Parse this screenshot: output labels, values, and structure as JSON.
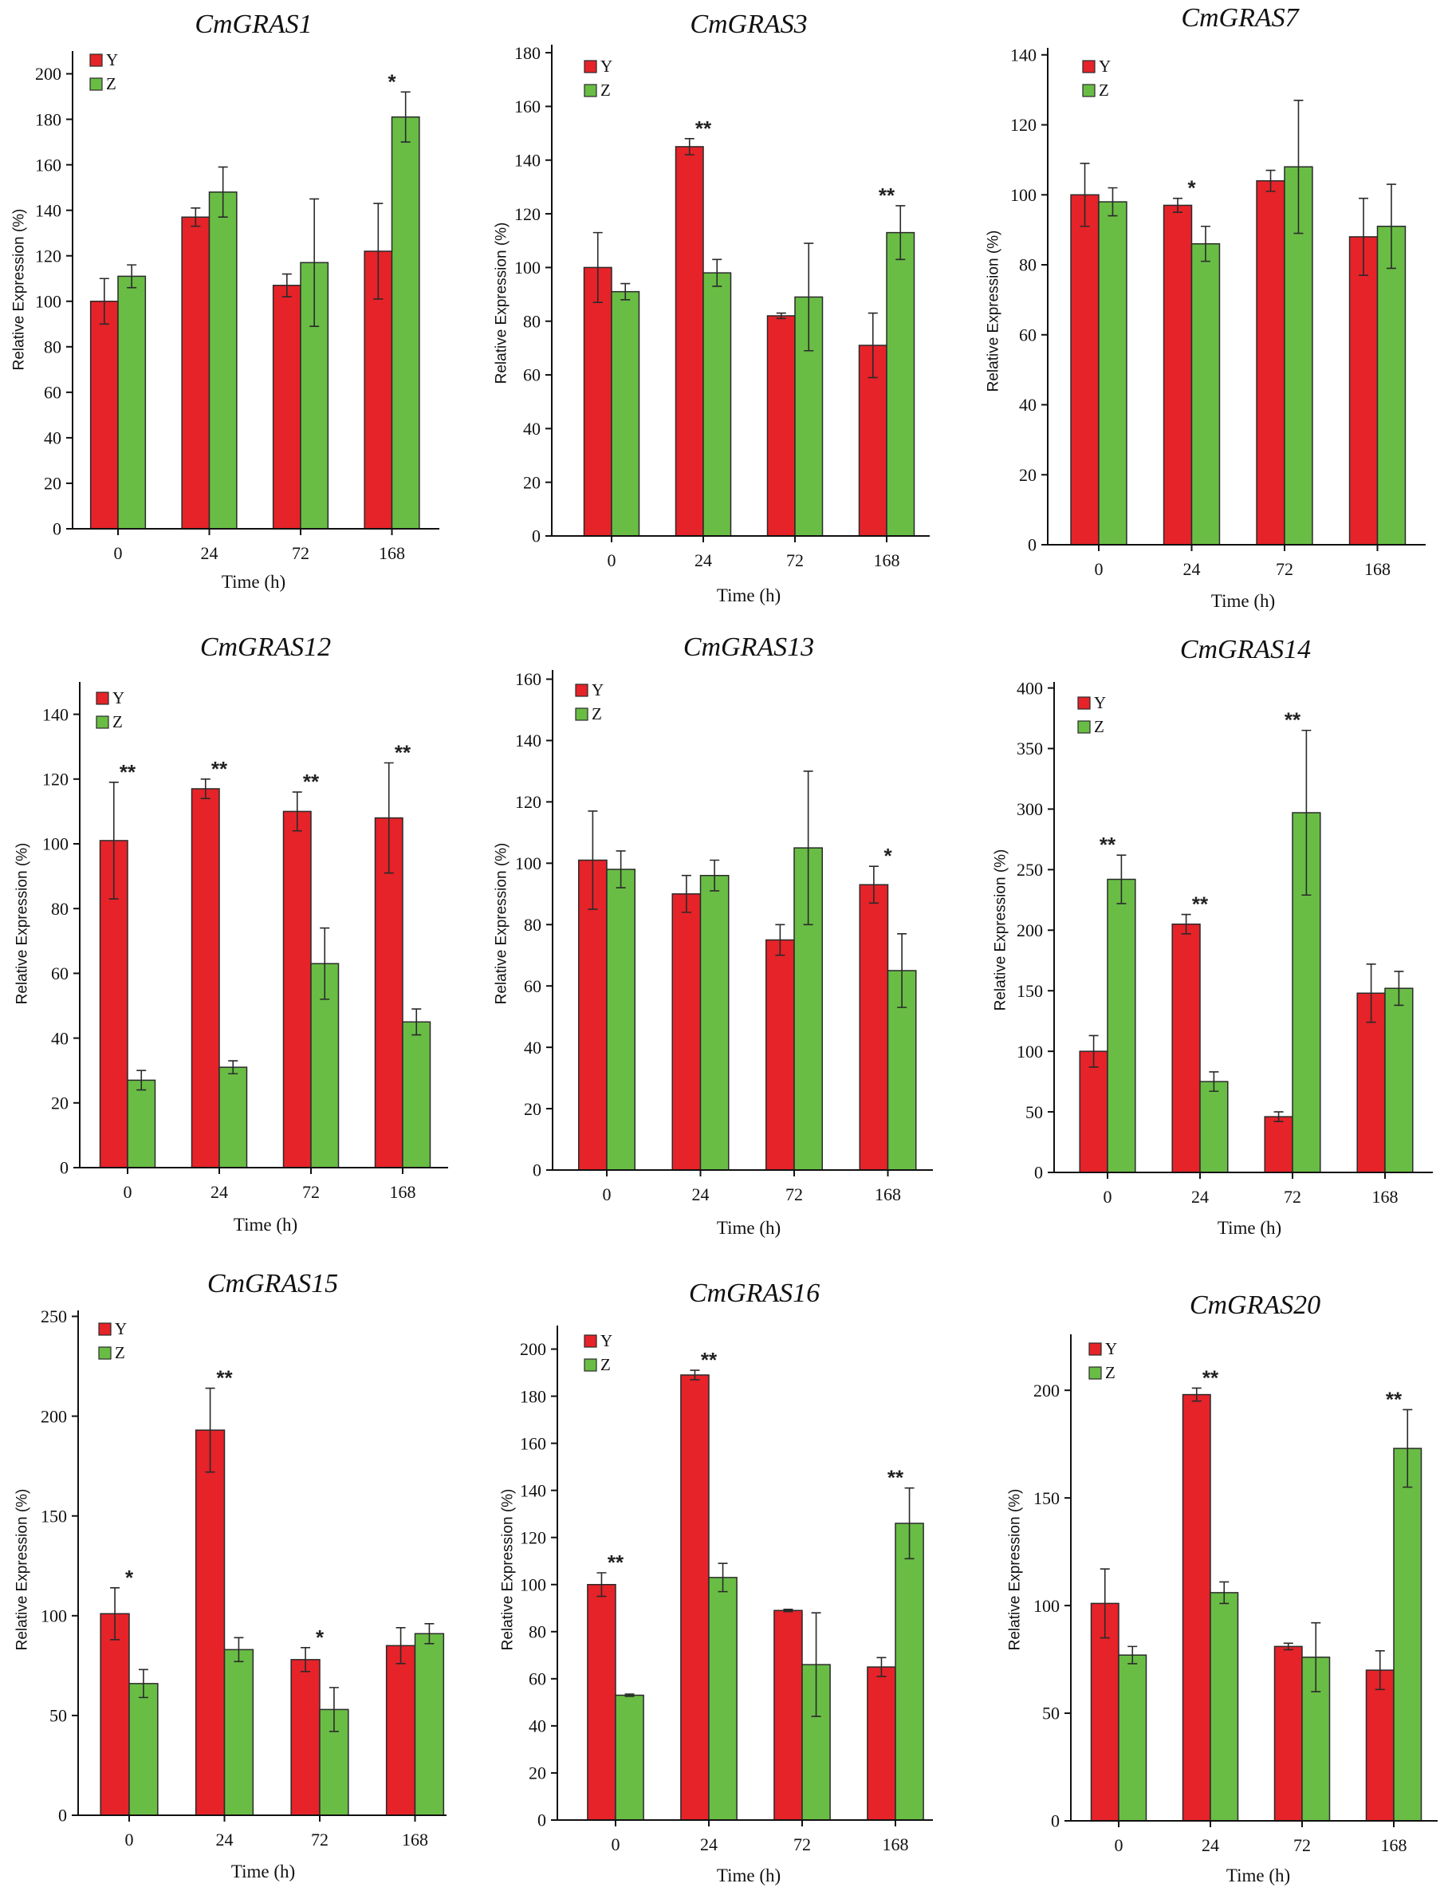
{
  "colors": {
    "Y": "#e52329",
    "Z": "#69bd45"
  },
  "chart_data": [
    {
      "type": "bar",
      "title": "CmGRAS1",
      "xlabel": "Time (h)",
      "ylabel": "Relative Expression (%)",
      "categories": [
        "0",
        "24",
        "72",
        "168"
      ],
      "ylim": [
        0,
        210
      ],
      "yticks": [
        0,
        20,
        40,
        60,
        80,
        100,
        120,
        140,
        160,
        180,
        200
      ],
      "grid": false,
      "legend": "top-left",
      "series": [
        {
          "name": "Y",
          "values": [
            100,
            137,
            107,
            122
          ],
          "errors": [
            10,
            4,
            5,
            21
          ]
        },
        {
          "name": "Z",
          "values": [
            111,
            148,
            117,
            181
          ],
          "errors": [
            5,
            11,
            28,
            11
          ]
        }
      ],
      "significance": [
        null,
        null,
        null,
        "*"
      ]
    },
    {
      "type": "bar",
      "title": "CmGRAS3",
      "xlabel": "Time (h)",
      "ylabel": "Relative Expression (%)",
      "categories": [
        "0",
        "24",
        "72",
        "168"
      ],
      "ylim": [
        0,
        183
      ],
      "yticks": [
        0,
        20,
        40,
        60,
        80,
        100,
        120,
        140,
        160,
        180
      ],
      "grid": false,
      "legend": "top-left",
      "series": [
        {
          "name": "Y",
          "values": [
            100,
            145,
            82,
            71
          ],
          "errors": [
            13,
            3,
            1,
            12
          ]
        },
        {
          "name": "Z",
          "values": [
            91,
            98,
            89,
            113
          ],
          "errors": [
            3,
            5,
            20,
            10
          ]
        }
      ],
      "significance": [
        null,
        "**",
        null,
        "**"
      ]
    },
    {
      "type": "bar",
      "title": "CmGRAS7",
      "xlabel": "Time (h)",
      "ylabel": "Relative Expression (%)",
      "categories": [
        "0",
        "24",
        "72",
        "168"
      ],
      "ylim": [
        0,
        142
      ],
      "yticks": [
        0,
        20,
        40,
        60,
        80,
        100,
        120,
        140
      ],
      "grid": false,
      "legend": "top-left",
      "series": [
        {
          "name": "Y",
          "values": [
            100,
            97,
            104,
            88
          ],
          "errors": [
            9,
            2,
            3,
            11
          ]
        },
        {
          "name": "Z",
          "values": [
            98,
            86,
            108,
            91
          ],
          "errors": [
            4,
            5,
            19,
            12
          ]
        }
      ],
      "significance": [
        null,
        "*",
        null,
        null
      ]
    },
    {
      "type": "bar",
      "title": "CmGRAS12",
      "xlabel": "Time (h)",
      "ylabel": "Relative Expression (%)",
      "categories": [
        "0",
        "24",
        "72",
        "168"
      ],
      "ylim": [
        0,
        150
      ],
      "yticks": [
        0,
        20,
        40,
        60,
        80,
        100,
        120,
        140
      ],
      "grid": false,
      "legend": "top-left",
      "series": [
        {
          "name": "Y",
          "values": [
            101,
            117,
            110,
            108
          ],
          "errors": [
            18,
            3,
            6,
            17
          ]
        },
        {
          "name": "Z",
          "values": [
            27,
            31,
            63,
            45
          ],
          "errors": [
            3,
            2,
            11,
            4
          ]
        }
      ],
      "significance": [
        "**",
        "**",
        "**",
        "**"
      ]
    },
    {
      "type": "bar",
      "title": "CmGRAS13",
      "xlabel": "Time (h)",
      "ylabel": "Relative Expression (%)",
      "categories": [
        "0",
        "24",
        "72",
        "168"
      ],
      "ylim": [
        0,
        163
      ],
      "yticks": [
        0,
        20,
        40,
        60,
        80,
        100,
        120,
        140,
        160
      ],
      "grid": false,
      "legend": "top-left",
      "series": [
        {
          "name": "Y",
          "values": [
            101,
            90,
            75,
            93
          ],
          "errors": [
            16,
            6,
            5,
            6
          ]
        },
        {
          "name": "Z",
          "values": [
            98,
            96,
            105,
            65
          ],
          "errors": [
            6,
            5,
            25,
            12
          ]
        }
      ],
      "significance": [
        null,
        null,
        null,
        "*"
      ]
    },
    {
      "type": "bar",
      "title": "CmGRAS14",
      "xlabel": "Time (h)",
      "ylabel": "Relative Expression (%)",
      "categories": [
        "0",
        "24",
        "72",
        "168"
      ],
      "ylim": [
        0,
        405
      ],
      "yticks": [
        0,
        50,
        100,
        150,
        200,
        250,
        300,
        350,
        400
      ],
      "grid": false,
      "legend": "top-left",
      "series": [
        {
          "name": "Y",
          "values": [
            100,
            205,
            46,
            148
          ],
          "errors": [
            13,
            8,
            4,
            24
          ]
        },
        {
          "name": "Z",
          "values": [
            242,
            75,
            297,
            152
          ],
          "errors": [
            20,
            8,
            68,
            14
          ]
        }
      ],
      "significance": [
        "**",
        "**",
        "**",
        null
      ]
    },
    {
      "type": "bar",
      "title": "CmGRAS15",
      "xlabel": "Time (h)",
      "ylabel": "Relative Expression (%)",
      "categories": [
        "0",
        "24",
        "72",
        "168"
      ],
      "ylim": [
        0,
        253
      ],
      "yticks": [
        0,
        50,
        100,
        150,
        200,
        250
      ],
      "grid": false,
      "legend": "top-left",
      "series": [
        {
          "name": "Y",
          "values": [
            101,
            193,
            78,
            85
          ],
          "errors": [
            13,
            21,
            6,
            9
          ]
        },
        {
          "name": "Z",
          "values": [
            66,
            83,
            53,
            91
          ],
          "errors": [
            7,
            6,
            11,
            5
          ]
        }
      ],
      "significance": [
        "*",
        "**",
        "*",
        null
      ]
    },
    {
      "type": "bar",
      "title": "CmGRAS16",
      "xlabel": "Time (h)",
      "ylabel": "Relative Expression (%)",
      "categories": [
        "0",
        "24",
        "72",
        "168"
      ],
      "ylim": [
        0,
        210
      ],
      "yticks": [
        0,
        20,
        40,
        60,
        80,
        100,
        120,
        140,
        160,
        180,
        200
      ],
      "grid": false,
      "legend": "top-left",
      "series": [
        {
          "name": "Y",
          "values": [
            100,
            189,
            89,
            65
          ],
          "errors": [
            5,
            2,
            0.5,
            4
          ]
        },
        {
          "name": "Z",
          "values": [
            53,
            103,
            66,
            126
          ],
          "errors": [
            0.5,
            6,
            22,
            15
          ]
        }
      ],
      "significance": [
        "**",
        "**",
        null,
        "**"
      ]
    },
    {
      "type": "bar",
      "title": "CmGRAS20",
      "xlabel": "Time (h)",
      "ylabel": "Relative Expression (%)",
      "categories": [
        "0",
        "24",
        "72",
        "168"
      ],
      "ylim": [
        0,
        226
      ],
      "yticks": [
        0,
        50,
        100,
        150,
        200
      ],
      "grid": false,
      "legend": "top-left",
      "series": [
        {
          "name": "Y",
          "values": [
            101,
            198,
            81,
            70
          ],
          "errors": [
            16,
            3,
            1.5,
            9
          ]
        },
        {
          "name": "Z",
          "values": [
            77,
            106,
            76,
            173
          ],
          "errors": [
            4,
            5,
            16,
            18
          ]
        }
      ],
      "significance": [
        null,
        "**",
        null,
        "**"
      ]
    }
  ]
}
